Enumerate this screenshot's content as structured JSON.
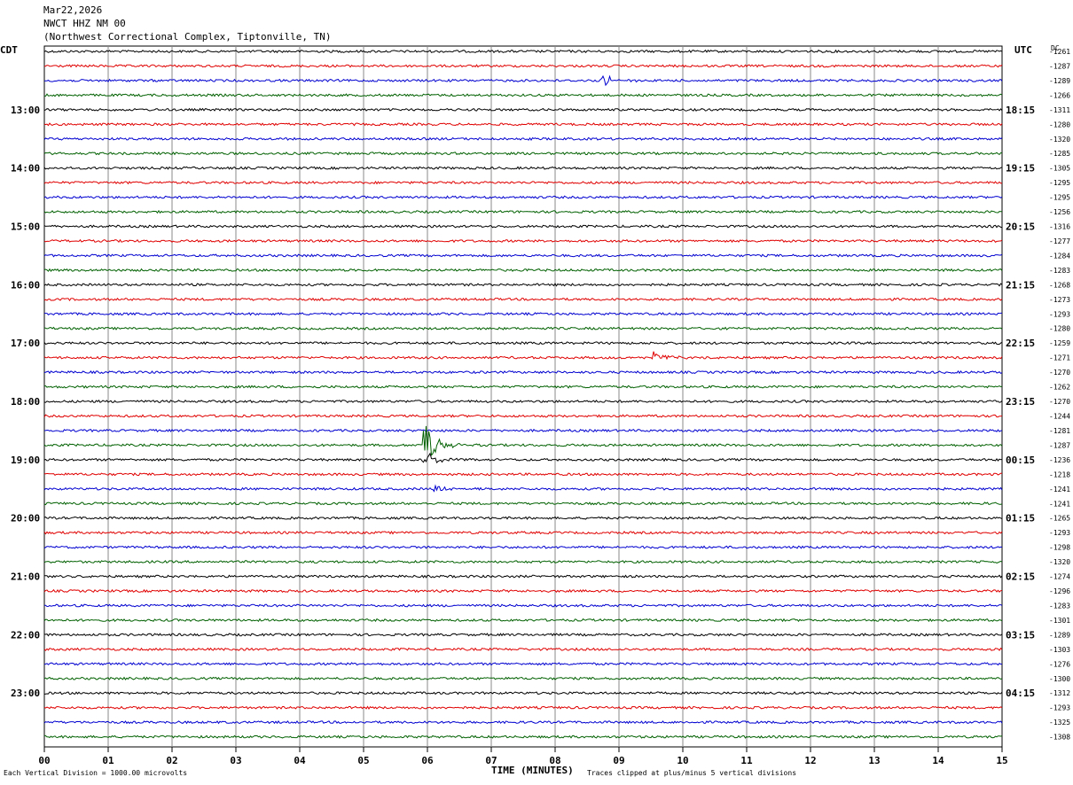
{
  "header": {
    "date": "Mar22,2026",
    "station": "NWCT HHZ NM 00",
    "location": "(Northwest Correctional Complex, Tiptonville, TN)"
  },
  "left_timezone": "CDT",
  "right_timezone": "UTC",
  "dc_header": "DC",
  "colors": [
    "#000000",
    "#e00000",
    "#0000d0",
    "#006000"
  ],
  "chart_data": {
    "type": "line",
    "title": "NWCT HHZ NM 00",
    "xlabel": "TIME (MINUTES)",
    "x_ticks": [
      "00",
      "01",
      "02",
      "03",
      "04",
      "05",
      "06",
      "07",
      "08",
      "09",
      "10",
      "11",
      "12",
      "13",
      "14",
      "15"
    ],
    "xlim": [
      0,
      15
    ],
    "rows_per_hour": 4,
    "left_hour_labels": [
      "13:00",
      "14:00",
      "15:00",
      "16:00",
      "17:00",
      "18:00",
      "19:00",
      "20:00",
      "21:00",
      "22:00",
      "23:00"
    ],
    "right_hour_labels": [
      "18:15",
      "19:15",
      "20:15",
      "21:15",
      "22:15",
      "23:15",
      "00:15",
      "01:15",
      "02:15",
      "03:15",
      "04:15"
    ],
    "dc_offsets": [
      -1261,
      -1287,
      -1289,
      -1266,
      -1311,
      -1280,
      -1320,
      -1285,
      -1305,
      -1295,
      -1295,
      -1256,
      -1316,
      -1277,
      -1284,
      -1283,
      -1268,
      -1273,
      -1293,
      -1280,
      -1259,
      -1271,
      -1270,
      -1262,
      -1270,
      -1244,
      -1281,
      -1287,
      -1236,
      -1218,
      -1241,
      -1241,
      -1265,
      -1293,
      -1298,
      -1320,
      -1274,
      -1296,
      -1283,
      -1301,
      -1289,
      -1303,
      -1276,
      -1300,
      -1312,
      -1293,
      -1325,
      -1308
    ],
    "events": [
      {
        "row": 2,
        "minute": 8.75,
        "amp": 7
      },
      {
        "row": 21,
        "minute": 9.55,
        "amp": 6
      },
      {
        "row": 27,
        "minute": 5.95,
        "amp": 30
      },
      {
        "row": 28,
        "minute": 5.95,
        "amp": 12
      },
      {
        "row": 30,
        "minute": 6.1,
        "amp": 5
      }
    ],
    "scale_note": "Each Vertical Division = 1000.00 microvolts",
    "clip_note": "Traces clipped at plus/minus 5 vertical divisions"
  }
}
